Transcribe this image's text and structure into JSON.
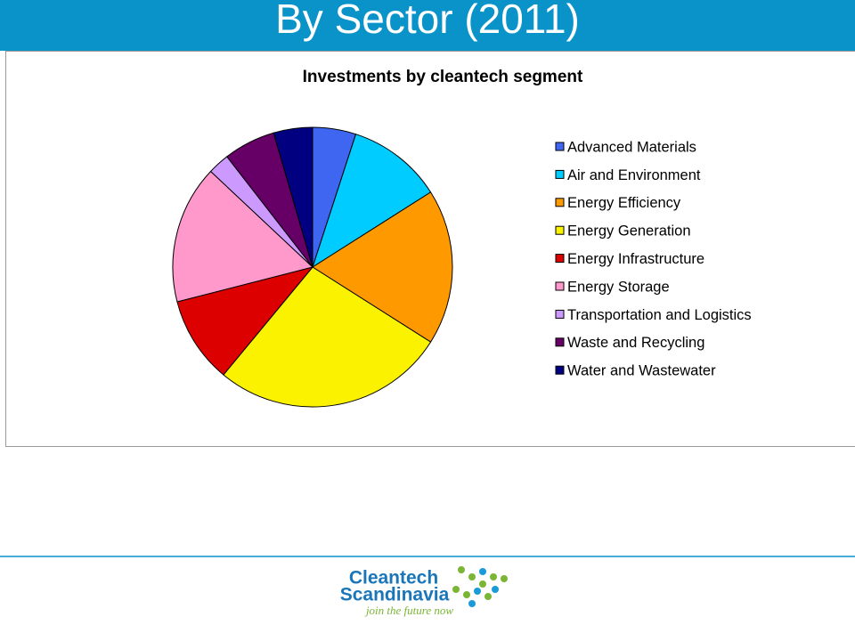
{
  "header": {
    "title": "By Sector (2011)"
  },
  "chart_data": {
    "type": "pie",
    "title": "Investments by cleantech segment",
    "categories": [
      "Advanced Materials",
      "Air and Environment",
      "Energy Efficiency",
      "Energy Generation",
      "Energy Infrastructure",
      "Energy Storage",
      "Transportation and Logistics",
      "Waste and Recycling",
      "Water and Wastewater"
    ],
    "values": [
      5,
      11,
      18,
      27,
      10,
      16,
      2.5,
      6,
      4.5
    ],
    "colors": [
      "#3f66f0",
      "#00ccff",
      "#ff9900",
      "#fbf200",
      "#dd0000",
      "#ff99cc",
      "#cc99ff",
      "#660066",
      "#000080"
    ],
    "legend": "right"
  },
  "logo": {
    "line1": "Cleantech",
    "line2": "Scandinavia",
    "tagline": "join the future now"
  }
}
